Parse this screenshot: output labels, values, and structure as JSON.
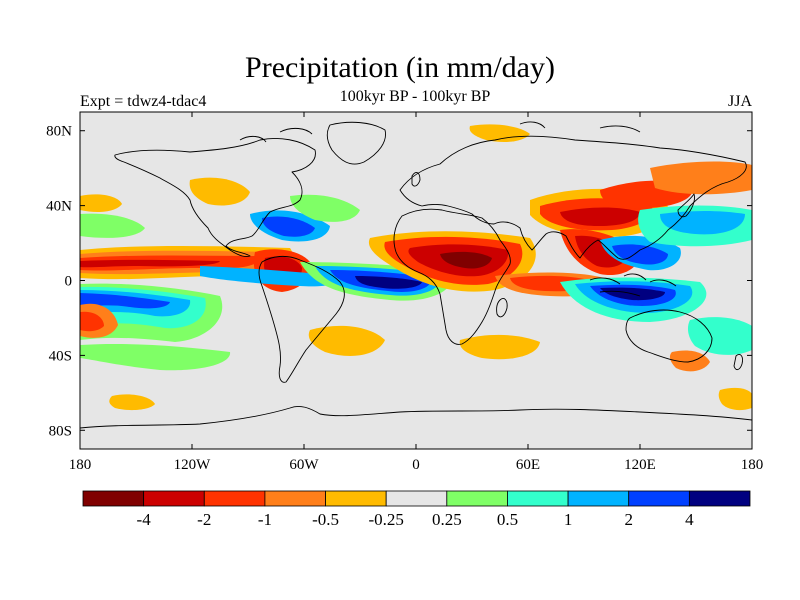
{
  "title": "Precipitation (in mm/day)",
  "subtitle": "100kyr BP - 100kyr BP",
  "left_label": "Expt = tdwz4-tdac4",
  "right_label": "JJA",
  "map": {
    "projection": "cylindrical-equidistant",
    "background_color": "#e6e6e6",
    "lat_ticks": [
      "80N",
      "40N",
      "0",
      "40S",
      "80S"
    ],
    "lon_ticks": [
      "180",
      "120W",
      "60W",
      "0",
      "60E",
      "120E",
      "180"
    ],
    "lat_values": [
      80,
      40,
      0,
      -40,
      -80
    ],
    "lon_values": [
      -180,
      -120,
      -60,
      0,
      60,
      120,
      180
    ],
    "lat_range": [
      -90,
      90
    ],
    "lon_range": [
      -180,
      180
    ]
  },
  "colorbar": {
    "labels": [
      "-4",
      "-2",
      "-1",
      "-0.5",
      "-0.25",
      "0.25",
      "0.5",
      "1",
      "2",
      "4"
    ],
    "colors": [
      "#800000",
      "#cc0000",
      "#ff3300",
      "#ff7f1a",
      "#ffbb00",
      "#e6e6e6",
      "#7fff66",
      "#33ffcc",
      "#00b3ff",
      "#0040ff",
      "#000080"
    ]
  },
  "anomalies": [
    {
      "name": "itcz-pacific-dry",
      "level": -2,
      "lon": [
        -180,
        -75
      ],
      "lat": [
        4,
        12
      ]
    },
    {
      "name": "pacific-wet-south",
      "level": 2,
      "lon": [
        -180,
        -100
      ],
      "lat": [
        -12,
        -4
      ]
    },
    {
      "name": "atlantic-wet",
      "level": 2,
      "lon": [
        -50,
        -5
      ],
      "lat": [
        -4,
        4
      ]
    },
    {
      "name": "africa-dry",
      "level": -2,
      "lon": [
        -10,
        45
      ],
      "lat": [
        2,
        16
      ]
    },
    {
      "name": "india-dry",
      "level": -1,
      "lon": [
        60,
        95
      ],
      "lat": [
        12,
        28
      ]
    },
    {
      "name": "maritime-wet",
      "level": 4,
      "lon": [
        100,
        140
      ],
      "lat": [
        -8,
        0
      ]
    },
    {
      "name": "indian-ocean-dry",
      "level": -0.5,
      "lon": [
        40,
        85
      ],
      "lat": [
        -8,
        -2
      ]
    }
  ]
}
